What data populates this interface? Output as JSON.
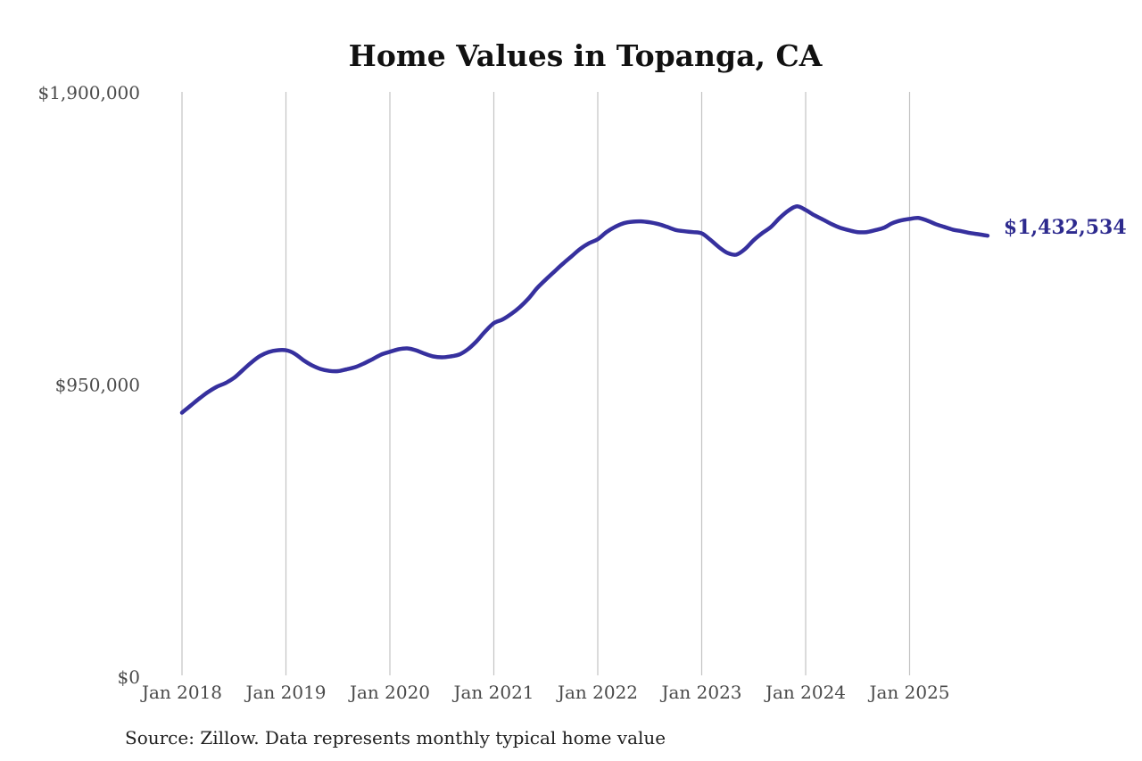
{
  "chart": {
    "title": "Home Values in Topanga, CA",
    "source_note": "Source: Zillow. Data represents monthly typical home value",
    "end_label": "$1,432,534",
    "colors": {
      "line": "#36309e",
      "end_label": "#2d2a8e",
      "grid": "#c3c3c3",
      "axis_text": "#4a4a4a",
      "title_text": "#111111",
      "source_text": "#1f1f1f",
      "background": "#ffffff"
    }
  },
  "chart_data": {
    "type": "line",
    "title": "Home Values in Topanga, CA",
    "series_name": "Monthly typical home value",
    "xlabel": "",
    "ylabel": "",
    "ylim": [
      0,
      1900000
    ],
    "grid": "vertical-only",
    "legend": "none",
    "final_value": 1432534,
    "y_ticks": [
      {
        "label": "$0",
        "value": 0
      },
      {
        "label": "$950,000",
        "value": 950000
      },
      {
        "label": "$1,900,000",
        "value": 1900000
      }
    ],
    "x_tick_labels": [
      "Jan 2018",
      "Jan 2019",
      "Jan 2020",
      "Jan 2021",
      "Jan 2022",
      "Jan 2023",
      "Jan 2024",
      "Jan 2025"
    ],
    "x": [
      "2018-01",
      "2018-02",
      "2018-03",
      "2018-04",
      "2018-05",
      "2018-06",
      "2018-07",
      "2018-08",
      "2018-09",
      "2018-10",
      "2018-11",
      "2018-12",
      "2019-01",
      "2019-02",
      "2019-03",
      "2019-04",
      "2019-05",
      "2019-06",
      "2019-07",
      "2019-08",
      "2019-09",
      "2019-10",
      "2019-11",
      "2019-12",
      "2020-01",
      "2020-02",
      "2020-03",
      "2020-04",
      "2020-05",
      "2020-06",
      "2020-07",
      "2020-08",
      "2020-09",
      "2020-10",
      "2020-11",
      "2020-12",
      "2021-01",
      "2021-02",
      "2021-03",
      "2021-04",
      "2021-05",
      "2021-06",
      "2021-07",
      "2021-08",
      "2021-09",
      "2021-10",
      "2021-11",
      "2021-12",
      "2022-01",
      "2022-02",
      "2022-03",
      "2022-04",
      "2022-05",
      "2022-06",
      "2022-07",
      "2022-08",
      "2022-09",
      "2022-10",
      "2022-11",
      "2022-12",
      "2023-01",
      "2023-02",
      "2023-03",
      "2023-04",
      "2023-05",
      "2023-06",
      "2023-07",
      "2023-08",
      "2023-09",
      "2023-10",
      "2023-11",
      "2023-12",
      "2024-01",
      "2024-02",
      "2024-03",
      "2024-04",
      "2024-05",
      "2024-06",
      "2024-07",
      "2024-08",
      "2024-09",
      "2024-10",
      "2024-11",
      "2024-12",
      "2025-01",
      "2025-02",
      "2025-03",
      "2025-04",
      "2025-05",
      "2025-06",
      "2025-07",
      "2025-08",
      "2025-09",
      "2025-10"
    ],
    "values": [
      857000,
      880000,
      903000,
      924000,
      941000,
      953000,
      970000,
      995000,
      1020000,
      1041000,
      1054000,
      1060000,
      1060000,
      1049000,
      1028000,
      1011000,
      999000,
      993000,
      992000,
      998000,
      1005000,
      1017000,
      1031000,
      1046000,
      1055000,
      1063000,
      1066000,
      1060000,
      1049000,
      1040000,
      1037000,
      1040000,
      1046000,
      1063000,
      1089000,
      1121000,
      1148000,
      1160000,
      1178000,
      1200000,
      1228000,
      1262000,
      1290000,
      1316000,
      1342000,
      1366000,
      1390000,
      1408000,
      1421000,
      1444000,
      1461000,
      1473000,
      1478000,
      1479000,
      1476000,
      1470000,
      1461000,
      1451000,
      1447000,
      1444000,
      1440000,
      1419000,
      1395000,
      1376000,
      1371000,
      1389000,
      1418000,
      1441000,
      1461000,
      1490000,
      1514000,
      1528000,
      1516000,
      1499000,
      1485000,
      1470000,
      1458000,
      1450000,
      1444000,
      1444000,
      1450000,
      1458000,
      1473000,
      1482000,
      1487000,
      1490000,
      1482000,
      1470000,
      1461000,
      1452000,
      1447000,
      1441000,
      1437000,
      1432534
    ]
  }
}
